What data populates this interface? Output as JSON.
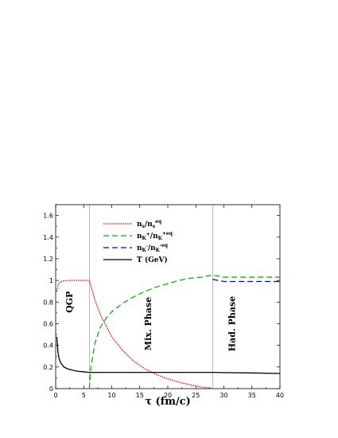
{
  "chart_data": {
    "type": "line",
    "xlabel": "τ (fm/c)",
    "ylabel": "",
    "xlim": [
      0,
      40
    ],
    "ylim": [
      0,
      1.7
    ],
    "xticks": [
      0,
      5,
      10,
      15,
      20,
      25,
      30,
      35,
      40
    ],
    "yticks": [
      0,
      0.2,
      0.4,
      0.6,
      0.8,
      1,
      1.2,
      1.4,
      1.6
    ],
    "ytick_labels": [
      "0",
      "0.2",
      "0.4",
      "0.6",
      "0.8",
      "1",
      "1.2",
      "1.4",
      "1.6"
    ],
    "grid": false,
    "legend_placement": "top-center",
    "phase_boundaries": [
      6,
      28
    ],
    "phase_labels": [
      {
        "text": "QGP",
        "x": 3
      },
      {
        "text": "Mix. Phase",
        "x": 17
      },
      {
        "text": "Had. Phase",
        "x": 32
      }
    ],
    "series": [
      {
        "name": "n_s/n_s^eq",
        "label_main": "n",
        "label_sub1": "s",
        "label_mid": "/n",
        "label_sub2": "s",
        "label_sup": "eq",
        "color": "#ff0000",
        "dash": "1.5,1.2",
        "x": [
          0.2,
          0.4,
          0.7,
          1,
          1.5,
          2,
          3,
          4,
          5,
          6,
          7,
          8,
          10,
          12,
          14,
          16,
          18,
          20,
          22,
          24,
          26,
          28
        ],
        "y": [
          0.9,
          0.95,
          0.98,
          0.99,
          0.995,
          1.0,
          1.0,
          1.0,
          1.0,
          1.0,
          0.82,
          0.68,
          0.48,
          0.35,
          0.25,
          0.18,
          0.13,
          0.09,
          0.06,
          0.035,
          0.015,
          0.0
        ]
      },
      {
        "name": "n_K+/n_K+eq",
        "label_main": "n",
        "label_sub1": "K",
        "label_sup1": "+",
        "label_mid": "/n",
        "label_sub2": "K",
        "label_sup": "+eq",
        "color": "#00bb00",
        "dash": "7,4",
        "x": [
          6,
          6.3,
          7,
          8,
          9,
          10,
          12,
          14,
          16,
          18,
          20,
          22,
          24,
          26,
          28,
          29,
          30,
          32,
          35,
          40
        ],
        "y": [
          0.0,
          0.2,
          0.42,
          0.57,
          0.65,
          0.71,
          0.79,
          0.85,
          0.9,
          0.94,
          0.97,
          1.0,
          1.02,
          1.03,
          1.05,
          1.04,
          1.03,
          1.03,
          1.03,
          1.03
        ]
      },
      {
        "name": "n_K-/n_K-eq",
        "label_main": "n",
        "label_sub1": "K",
        "label_sup1": "-",
        "label_mid": "/n",
        "label_sub2": "K",
        "label_sup": "-eq",
        "color": "#0000dd",
        "dash": "7,4",
        "x": [
          28,
          29,
          30,
          32,
          35,
          40
        ],
        "y": [
          1.01,
          1.0,
          0.99,
          0.99,
          0.99,
          0.99
        ]
      },
      {
        "name": "T (GeV)",
        "label_main": "T (GeV)",
        "color": "#000000",
        "dash": "",
        "x": [
          0.2,
          0.4,
          0.6,
          0.8,
          1,
          1.5,
          2,
          3,
          4,
          5,
          6,
          10,
          15,
          20,
          25,
          28,
          30,
          35,
          40
        ],
        "y": [
          0.48,
          0.34,
          0.28,
          0.25,
          0.23,
          0.2,
          0.185,
          0.17,
          0.16,
          0.155,
          0.15,
          0.15,
          0.15,
          0.15,
          0.15,
          0.15,
          0.148,
          0.145,
          0.14
        ]
      }
    ]
  }
}
